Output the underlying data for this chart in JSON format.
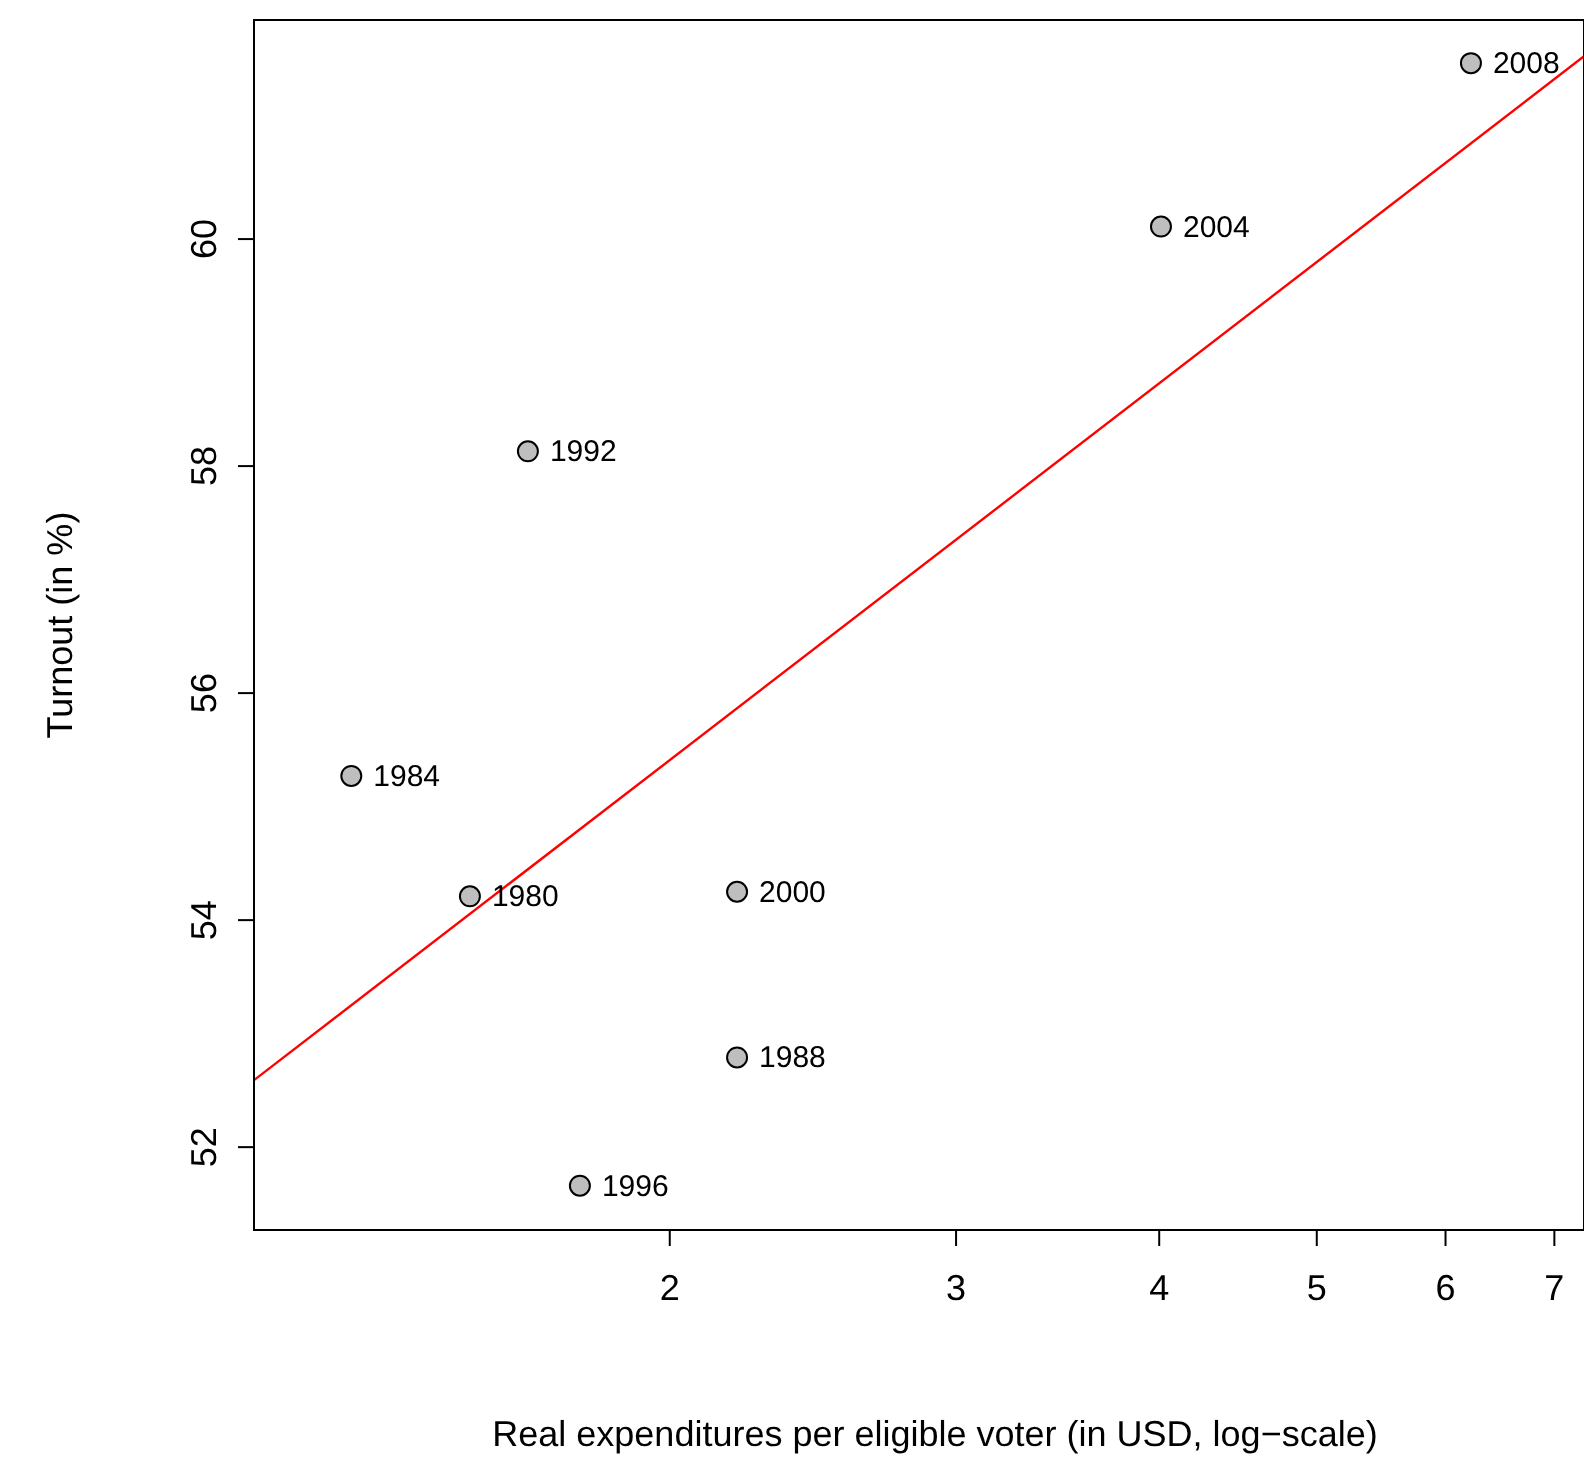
{
  "chart_data": {
    "type": "scatter",
    "xlabel": "Real expenditures per eligible voter (in USD, log−scale)",
    "ylabel": "Turnout (in %)",
    "log": "x",
    "xlim": [
      1.11,
      7.3
    ],
    "ylim": [
      51.27,
      61.93
    ],
    "xticks": [
      2,
      3,
      4,
      5,
      6,
      7
    ],
    "yticks": [
      52,
      54,
      56,
      58,
      60
    ],
    "grid": false,
    "series": [
      {
        "marker": "circle",
        "color": "#bebebe",
        "x": [
          1.507,
          1.274,
          2.2,
          1.636,
          1.761,
          2.2,
          4.01,
          6.22
        ],
        "values": [
          54.21,
          55.27,
          52.79,
          58.13,
          51.66,
          54.25,
          60.11,
          61.55
        ]
      },
      {
        "type": "line",
        "color": "#ff0000",
        "x": [
          1.11,
          7.3
        ],
        "values": [
          52.59,
          61.61
        ]
      }
    ],
    "annotations": [
      {
        "text": "1980",
        "x": 1.507,
        "y": 54.21
      },
      {
        "text": "1984",
        "x": 1.274,
        "y": 55.27
      },
      {
        "text": "1988",
        "x": 2.2,
        "y": 52.79
      },
      {
        "text": "1992",
        "x": 1.636,
        "y": 58.13
      },
      {
        "text": "1996",
        "x": 1.761,
        "y": 51.66
      },
      {
        "text": "2000",
        "x": 2.2,
        "y": 54.25
      },
      {
        "text": "2004",
        "x": 4.01,
        "y": 60.11
      },
      {
        "text": "2008",
        "x": 6.22,
        "y": 61.55
      }
    ]
  }
}
